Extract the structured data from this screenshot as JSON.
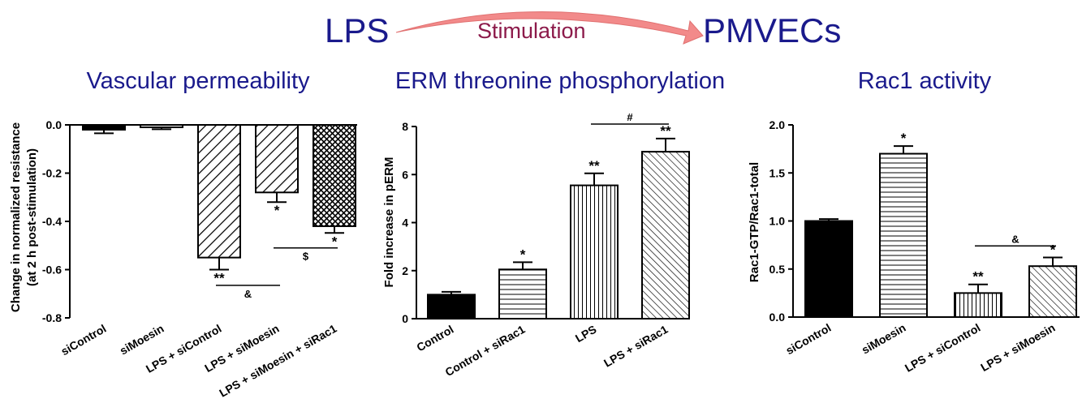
{
  "header": {
    "left": "LPS",
    "arrow_label": "Stimulation",
    "right": "PMVECs"
  },
  "colors": {
    "title": "#1a1a8c",
    "stimulation": "#8c1a4a",
    "arrow": "#ee8080"
  },
  "chart_data": [
    {
      "type": "bar",
      "title": "Vascular permeability",
      "ylabel": "Change in normalized resistance (at 2 h post-stimulation)",
      "ylim": [
        -0.8,
        0.0
      ],
      "yticks": [
        "0.0",
        "-0.2",
        "-0.4",
        "-0.6",
        "-0.8"
      ],
      "categories": [
        "siControl",
        "siMoesin",
        "LPS + siControl",
        "LPS + siMoesin",
        "LPS + siMoesin + siRac1"
      ],
      "values": [
        -0.02,
        -0.01,
        -0.55,
        -0.28,
        -0.42
      ],
      "errors": [
        0.015,
        0.008,
        0.05,
        0.04,
        0.028
      ],
      "fills": [
        "solid-black",
        "horizontal-lines",
        "diagonal-back",
        "diagonal-back",
        "crosshatch"
      ],
      "significance": [
        "",
        "",
        "**",
        "*",
        "*"
      ],
      "comparisons": [
        {
          "from": 2,
          "to": 3,
          "label": "&",
          "value": -0.665
        },
        {
          "from": 3,
          "to": 4,
          "label": "$",
          "value": -0.51
        }
      ]
    },
    {
      "type": "bar",
      "title": "ERM threonine phosphorylation",
      "ylabel": "Fold increase in pERM",
      "ylim": [
        0,
        8
      ],
      "yticks": [
        "0",
        "2",
        "4",
        "6",
        "8"
      ],
      "categories": [
        "Control",
        "Control + siRac1",
        "LPS",
        "LPS + siRac1"
      ],
      "values": [
        1.0,
        2.05,
        5.55,
        6.95
      ],
      "errors": [
        0.12,
        0.3,
        0.5,
        0.55
      ],
      "fills": [
        "solid-black",
        "horizontal-lines",
        "vertical-lines",
        "diagonal-fwd"
      ],
      "significance": [
        "",
        "*",
        "**",
        "**"
      ],
      "comparisons": [
        {
          "from": 2,
          "to": 3,
          "label": "#",
          "value": 8.1
        }
      ]
    },
    {
      "type": "bar",
      "title": "Rac1 activity",
      "ylabel": "Rac1-GTP/Rac1-total",
      "ylim": [
        0,
        2.0
      ],
      "yticks": [
        "0.0",
        "0.5",
        "1.0",
        "1.5",
        "2.0"
      ],
      "categories": [
        "siControl",
        "siMoesin",
        "LPS + siControl",
        "LPS + siMoesin"
      ],
      "values": [
        1.0,
        1.7,
        0.25,
        0.53
      ],
      "errors": [
        0.02,
        0.08,
        0.09,
        0.09
      ],
      "fills": [
        "solid-black",
        "horizontal-lines",
        "vertical-lines",
        "diagonal-fwd"
      ],
      "significance": [
        "",
        "*",
        "**",
        "*"
      ],
      "comparisons": [
        {
          "from": 2,
          "to": 3,
          "label": "&",
          "value": 0.74
        }
      ]
    }
  ]
}
